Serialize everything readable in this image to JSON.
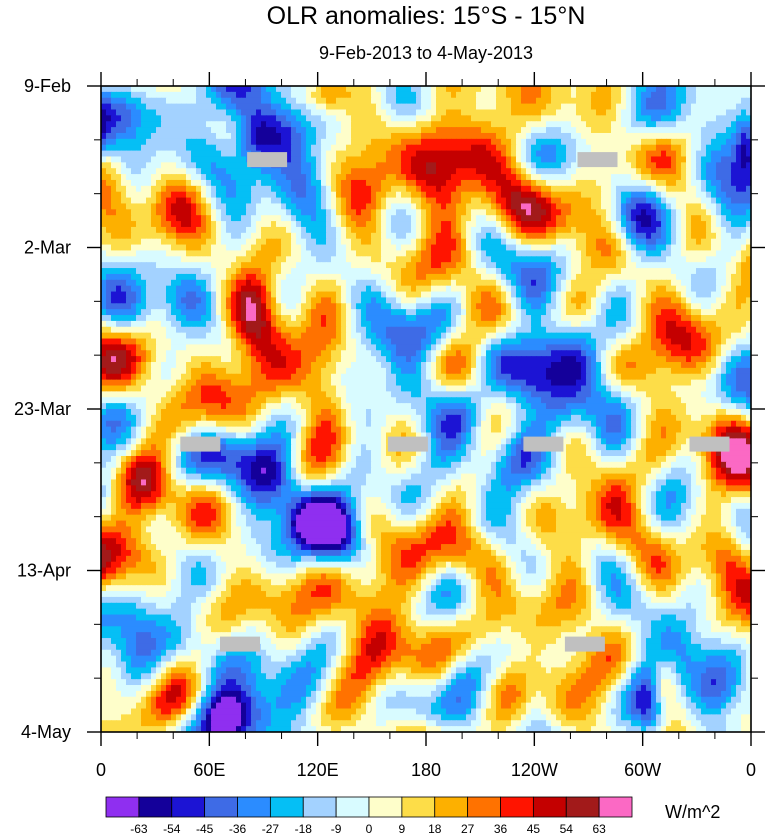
{
  "chart_data": {
    "type": "heatmap",
    "title": "OLR anomalies: 15°S - 15°N",
    "subtitle": "9-Feb-2013 to 4-May-2013",
    "x_ticks": [
      {
        "lon": 0,
        "label": "0"
      },
      {
        "lon": 60,
        "label": "60E"
      },
      {
        "lon": 120,
        "label": "120E"
      },
      {
        "lon": 180,
        "label": "180"
      },
      {
        "lon": 240,
        "label": "120W"
      },
      {
        "lon": 300,
        "label": "60W"
      },
      {
        "lon": 360,
        "label": "0"
      }
    ],
    "x_range": [
      0,
      360
    ],
    "y_ticks": [
      {
        "day": 0,
        "label": "9-Feb"
      },
      {
        "day": 21,
        "label": "2-Mar"
      },
      {
        "day": 42,
        "label": "23-Mar"
      },
      {
        "day": 63,
        "label": "13-Apr"
      },
      {
        "day": 84,
        "label": "4-May"
      }
    ],
    "y_range": [
      0,
      84
    ],
    "y_direction": "time increases downward",
    "colorbar": {
      "levels": [
        "-63",
        "-54",
        "-45",
        "-36",
        "-27",
        "-18",
        "-9",
        "0",
        "9",
        "18",
        "27",
        "36",
        "45",
        "54",
        "63"
      ],
      "colors": [
        "#8f2ff0",
        "#14009a",
        "#1c14d4",
        "#3e6be6",
        "#2b8cff",
        "#05bff5",
        "#a3d2ff",
        "#d8fbff",
        "#fefeca",
        "#fddd48",
        "#fdb000",
        "#ff7200",
        "#ff1400",
        "#c40000",
        "#a21a1a",
        "#fb69c4"
      ],
      "units": "W/m^2"
    },
    "features": [
      {
        "type": "negative",
        "lon": 100,
        "day": 5,
        "amp": -60,
        "slon": 12,
        "sday": 3.5
      },
      {
        "type": "negative",
        "lon": 85,
        "day": 7,
        "amp": -40,
        "slon": 8,
        "sday": 3
      },
      {
        "type": "negative",
        "lon": 125,
        "day": 2,
        "amp": -30,
        "slon": 10,
        "sday": 3
      },
      {
        "type": "negative",
        "lon": 70,
        "day": 48,
        "amp": -55,
        "slon": 14,
        "sday": 3
      },
      {
        "type": "negative",
        "lon": 95,
        "day": 51,
        "amp": -60,
        "slon": 12,
        "sday": 3
      },
      {
        "type": "negative",
        "lon": 115,
        "day": 56,
        "amp": -65,
        "slon": 12,
        "sday": 3
      },
      {
        "type": "negative",
        "lon": 130,
        "day": 58,
        "amp": -35,
        "slon": 10,
        "sday": 3
      },
      {
        "type": "negative",
        "lon": 70,
        "day": 82,
        "amp": -60,
        "slon": 12,
        "sday": 2.5
      },
      {
        "type": "negative",
        "lon": 305,
        "day": 81,
        "amp": -45,
        "slon": 8,
        "sday": 3
      },
      {
        "type": "negative",
        "lon": 340,
        "day": 79,
        "amp": -30,
        "slon": 10,
        "sday": 3
      },
      {
        "type": "negative",
        "lon": 240,
        "day": 27,
        "amp": -25,
        "slon": 14,
        "sday": 3
      },
      {
        "type": "negative",
        "lon": 295,
        "day": 18,
        "amp": -30,
        "slon": 10,
        "sday": 3
      },
      {
        "type": "negative",
        "lon": 175,
        "day": 32,
        "amp": -30,
        "slon": 16,
        "sday": 3
      },
      {
        "type": "negative",
        "lon": 200,
        "day": 42,
        "amp": -30,
        "slon": 10,
        "sday": 2.5
      },
      {
        "type": "negative",
        "lon": 220,
        "day": 34,
        "amp": -35,
        "slon": 12,
        "sday": 3
      },
      {
        "type": "negative",
        "lon": 240,
        "day": 38,
        "amp": -35,
        "slon": 10,
        "sday": 3
      },
      {
        "type": "negative",
        "lon": 255,
        "day": 42,
        "amp": -30,
        "slon": 12,
        "sday": 3
      },
      {
        "type": "negative",
        "lon": 290,
        "day": 40,
        "amp": -25,
        "slon": 12,
        "sday": 3
      },
      {
        "type": "negative",
        "lon": 330,
        "day": 39,
        "amp": -30,
        "slon": 12,
        "sday": 3
      },
      {
        "type": "negative",
        "lon": 357,
        "day": 7,
        "amp": -40,
        "slon": 5,
        "sday": 3
      },
      {
        "type": "negative",
        "lon": 240,
        "day": 80,
        "amp": -30,
        "slon": 8,
        "sday": 3
      },
      {
        "type": "negative",
        "lon": 200,
        "day": 76,
        "amp": -25,
        "slon": 10,
        "sday": 3
      },
      {
        "type": "negative",
        "lon": 10,
        "day": 2,
        "amp": -35,
        "slon": 10,
        "sday": 3
      },
      {
        "type": "negative",
        "lon": 20,
        "day": 72,
        "amp": -30,
        "slon": 10,
        "sday": 4
      },
      {
        "type": "negative",
        "lon": 45,
        "day": 28,
        "amp": -30,
        "slon": 10,
        "sday": 3
      },
      {
        "type": "positive",
        "lon": 125,
        "day": 1,
        "amp": 45,
        "slon": 8,
        "sday": 2
      },
      {
        "type": "positive",
        "lon": 150,
        "day": 10,
        "amp": 30,
        "slon": 12,
        "sday": 5
      },
      {
        "type": "positive",
        "lon": 190,
        "day": 16,
        "amp": 30,
        "slon": 14,
        "sday": 5
      },
      {
        "type": "positive",
        "lon": 35,
        "day": 15,
        "amp": 25,
        "slon": 18,
        "sday": 6
      },
      {
        "type": "positive",
        "lon": 85,
        "day": 30,
        "amp": 45,
        "slon": 10,
        "sday": 6
      },
      {
        "type": "positive",
        "lon": 125,
        "day": 38,
        "amp": 45,
        "slon": 10,
        "sday": 5
      },
      {
        "type": "positive",
        "lon": 210,
        "day": 32,
        "amp": 30,
        "slon": 14,
        "sday": 4
      },
      {
        "type": "positive",
        "lon": 320,
        "day": 31,
        "amp": 35,
        "slon": 14,
        "sday": 4
      },
      {
        "type": "positive",
        "lon": 210,
        "day": 8,
        "amp": 25,
        "slon": 16,
        "sday": 5
      },
      {
        "type": "positive",
        "lon": 335,
        "day": 44,
        "amp": 25,
        "slon": 14,
        "sday": 4
      },
      {
        "type": "positive",
        "lon": 185,
        "day": 60,
        "amp": 30,
        "slon": 16,
        "sday": 4
      },
      {
        "type": "positive",
        "lon": 260,
        "day": 62,
        "amp": 25,
        "slon": 14,
        "sday": 4
      },
      {
        "type": "positive",
        "lon": 312,
        "day": 78,
        "amp": 48,
        "slon": 6,
        "sday": 3
      },
      {
        "type": "positive",
        "lon": 5,
        "day": 63,
        "amp": 30,
        "slon": 12,
        "sday": 5
      },
      {
        "type": "positive",
        "lon": 150,
        "day": 72,
        "amp": 30,
        "slon": 14,
        "sday": 5
      },
      {
        "type": "positive",
        "lon": 25,
        "day": 52,
        "amp": 38,
        "slon": 10,
        "sday": 3
      },
      {
        "type": "positive",
        "lon": 280,
        "day": 51,
        "amp": 25,
        "slon": 16,
        "sday": 4
      },
      {
        "type": "positive",
        "lon": 345,
        "day": 58,
        "amp": 25,
        "slon": 10,
        "sday": 5
      },
      {
        "type": "positive",
        "lon": 40,
        "day": 40,
        "amp": 25,
        "slon": 14,
        "sday": 4
      },
      {
        "type": "positive",
        "lon": 260,
        "day": 18,
        "amp": 25,
        "slon": 12,
        "sday": 4
      },
      {
        "type": "positive",
        "lon": 100,
        "day": 66,
        "amp": 25,
        "slon": 12,
        "sday": 4
      },
      {
        "type": "positive",
        "lon": 220,
        "day": 70,
        "amp": 25,
        "slon": 14,
        "sday": 4
      }
    ],
    "missing": [
      {
        "lon": 92,
        "day": 9.5
      },
      {
        "lon": 275,
        "day": 9.5
      },
      {
        "lon": 55,
        "day": 46.5
      },
      {
        "lon": 170,
        "day": 46.5
      },
      {
        "lon": 245,
        "day": 46.5
      },
      {
        "lon": 337,
        "day": 46.5
      },
      {
        "lon": 77,
        "day": 72.5
      },
      {
        "lon": 268,
        "day": 72.5
      }
    ]
  }
}
